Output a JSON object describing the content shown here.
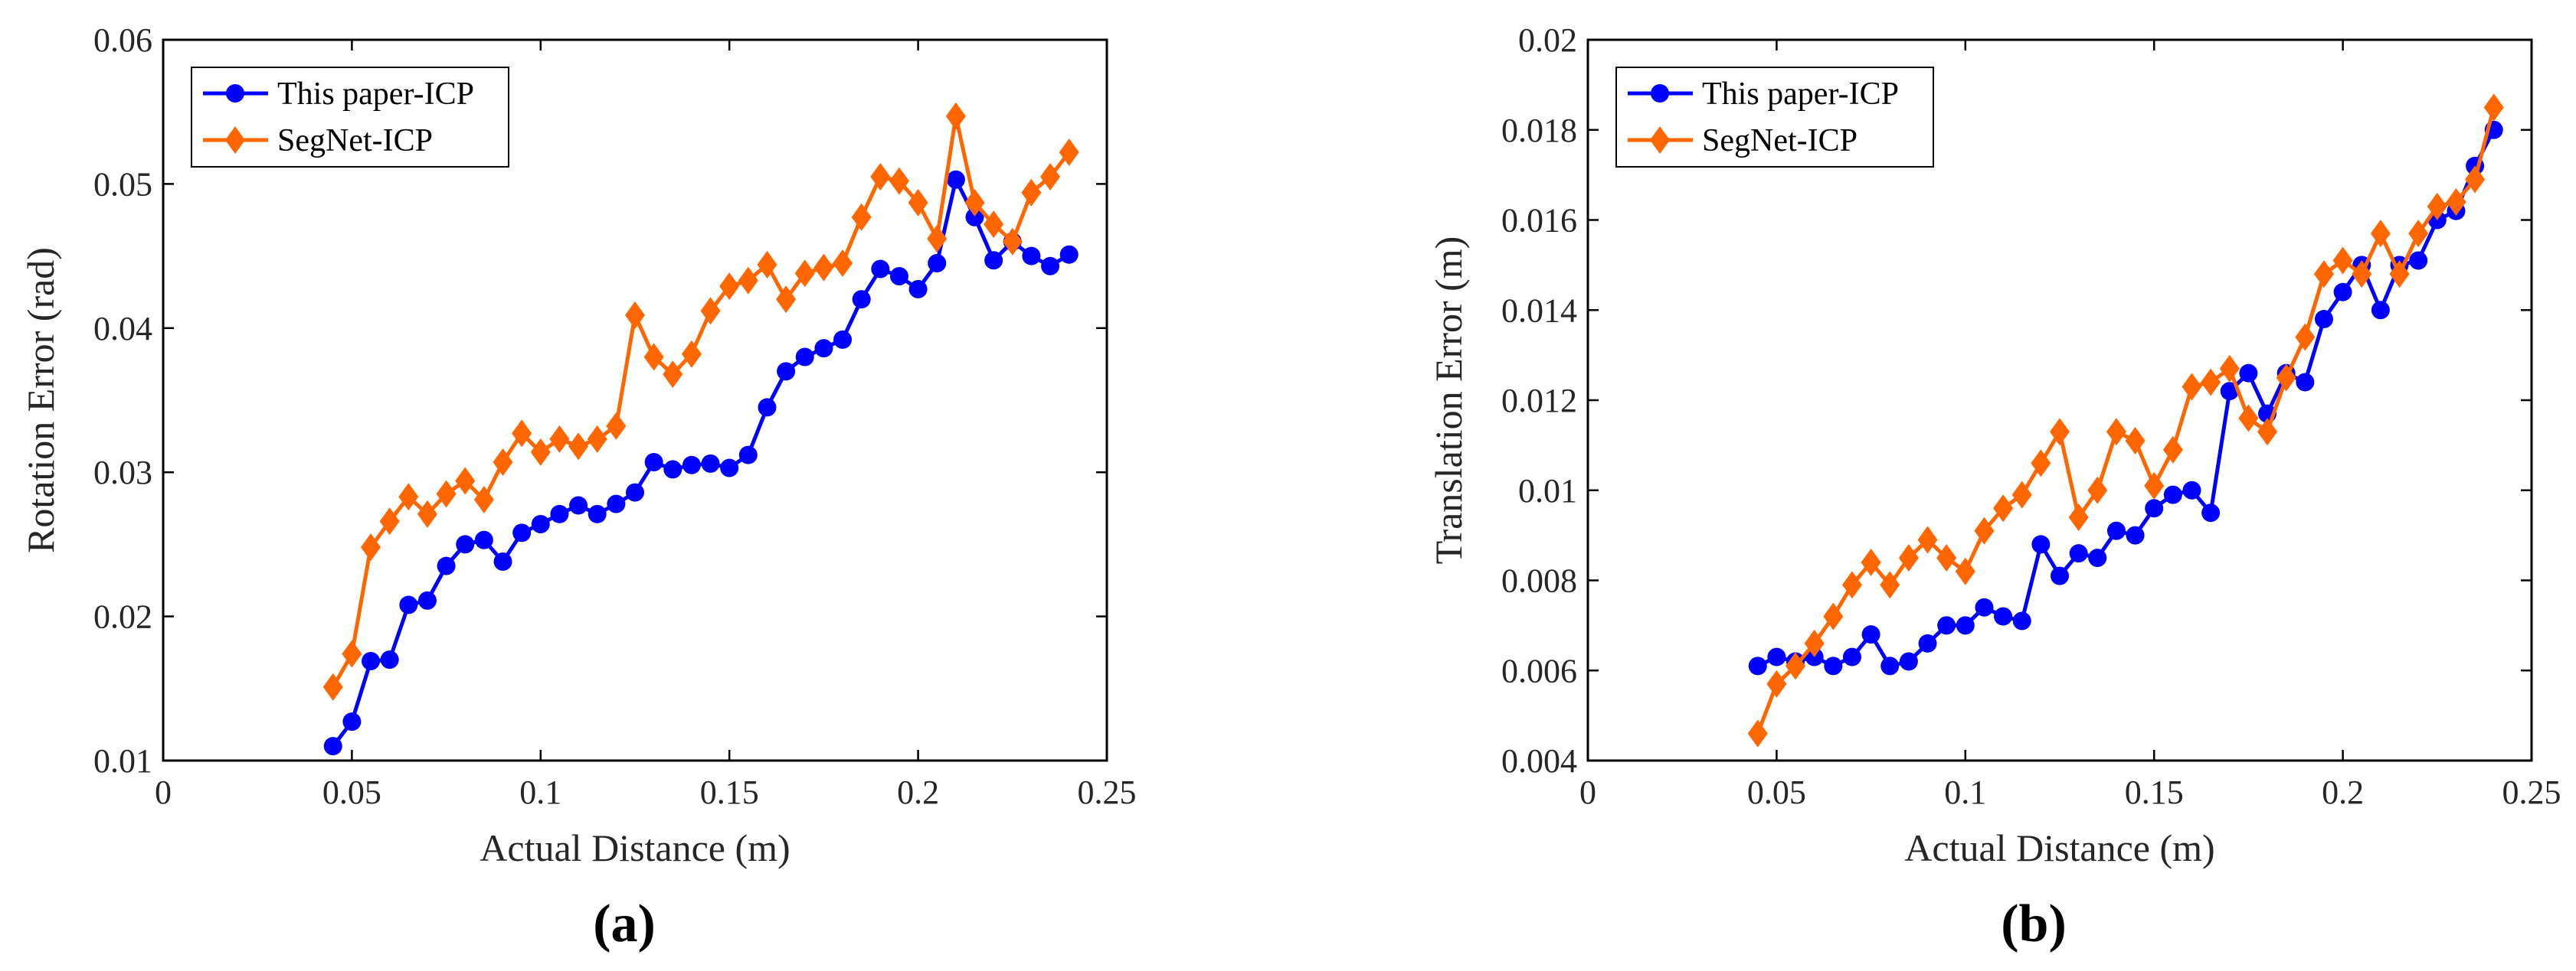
{
  "chart_data": [
    {
      "type": "line",
      "panel_label": "(a)",
      "xlabel": "Actual Distance (m)",
      "ylabel": "Rotation Error (rad)",
      "xlim": [
        0,
        0.25
      ],
      "ylim": [
        0.01,
        0.06
      ],
      "xticks": [
        0,
        0.05,
        0.1,
        0.15,
        0.2,
        0.25
      ],
      "xtick_labels": [
        "0",
        "0.05",
        "0.1",
        "0.15",
        "0.2",
        "0.25"
      ],
      "yticks": [
        0.01,
        0.02,
        0.03,
        0.04,
        0.05,
        0.06
      ],
      "ytick_labels": [
        "0.01",
        "0.02",
        "0.03",
        "0.04",
        "0.05",
        "0.06"
      ],
      "legend_position": "top-left",
      "x": [
        0.045,
        0.05,
        0.055,
        0.06,
        0.065,
        0.07,
        0.075,
        0.08,
        0.085,
        0.09,
        0.095,
        0.1,
        0.105,
        0.11,
        0.115,
        0.12,
        0.125,
        0.13,
        0.135,
        0.14,
        0.145,
        0.15,
        0.155,
        0.16,
        0.165,
        0.17,
        0.175,
        0.18,
        0.185,
        0.19,
        0.195,
        0.2,
        0.205,
        0.21,
        0.215,
        0.22,
        0.225,
        0.23,
        0.235,
        0.24
      ],
      "series": [
        {
          "name": "This paper-ICP",
          "color": "#0000ff",
          "marker": "circle",
          "values": [
            0.011,
            0.0127,
            0.0169,
            0.017,
            0.0208,
            0.0211,
            0.0235,
            0.025,
            0.0253,
            0.0238,
            0.0258,
            0.0264,
            0.0271,
            0.0277,
            0.0271,
            0.0278,
            0.0286,
            0.0307,
            0.0302,
            0.0305,
            0.0306,
            0.0303,
            0.0312,
            0.0345,
            0.037,
            0.038,
            0.0386,
            0.0392,
            0.042,
            0.0441,
            0.0436,
            0.0427,
            0.0445,
            0.0503,
            0.0477,
            0.0447,
            0.046,
            0.045,
            0.0443,
            0.0451
          ]
        },
        {
          "name": "SegNet-ICP",
          "color": "#ff6600",
          "marker": "diamond",
          "values": [
            0.0151,
            0.0174,
            0.0248,
            0.0266,
            0.0283,
            0.0271,
            0.0285,
            0.0294,
            0.0281,
            0.0307,
            0.0327,
            0.0314,
            0.0323,
            0.0318,
            0.0323,
            0.0332,
            0.0409,
            0.038,
            0.0368,
            0.0382,
            0.0412,
            0.0429,
            0.0433,
            0.0444,
            0.042,
            0.0438,
            0.0442,
            0.0445,
            0.0477,
            0.0505,
            0.0502,
            0.0487,
            0.0462,
            0.0547,
            0.0487,
            0.0472,
            0.046,
            0.0494,
            0.0505,
            0.0522
          ]
        }
      ]
    },
    {
      "type": "line",
      "panel_label": "(b)",
      "xlabel": "Actual Distance (m)",
      "ylabel": "Translation Error (m)",
      "xlim": [
        0,
        0.25
      ],
      "ylim": [
        0.004,
        0.02
      ],
      "xticks": [
        0,
        0.05,
        0.1,
        0.15,
        0.2,
        0.25
      ],
      "xtick_labels": [
        "0",
        "0.05",
        "0.1",
        "0.15",
        "0.2",
        "0.25"
      ],
      "yticks": [
        0.004,
        0.006,
        0.008,
        0.01,
        0.012,
        0.014,
        0.016,
        0.018,
        0.02
      ],
      "ytick_labels": [
        "0.004",
        "0.006",
        "0.008",
        "0.01",
        "0.012",
        "0.014",
        "0.016",
        "0.018",
        "0.02"
      ],
      "legend_position": "top-left",
      "x": [
        0.045,
        0.05,
        0.055,
        0.06,
        0.065,
        0.07,
        0.075,
        0.08,
        0.085,
        0.09,
        0.095,
        0.1,
        0.105,
        0.11,
        0.115,
        0.12,
        0.125,
        0.13,
        0.135,
        0.14,
        0.145,
        0.15,
        0.155,
        0.16,
        0.165,
        0.17,
        0.175,
        0.18,
        0.185,
        0.19,
        0.195,
        0.2,
        0.205,
        0.21,
        0.215,
        0.22,
        0.225,
        0.23,
        0.235,
        0.24
      ],
      "series": [
        {
          "name": "This paper-ICP",
          "color": "#0000ff",
          "marker": "circle",
          "values": [
            0.0061,
            0.0063,
            0.0062,
            0.0063,
            0.0061,
            0.0063,
            0.0068,
            0.0061,
            0.0062,
            0.0066,
            0.007,
            0.007,
            0.0074,
            0.0072,
            0.0071,
            0.0088,
            0.0081,
            0.0086,
            0.0085,
            0.0091,
            0.009,
            0.0096,
            0.0099,
            0.01,
            0.0095,
            0.0122,
            0.0126,
            0.0117,
            0.0126,
            0.0124,
            0.0138,
            0.0144,
            0.015,
            0.014,
            0.015,
            0.0151,
            0.016,
            0.0162,
            0.0172,
            0.018
          ]
        },
        {
          "name": "SegNet-ICP",
          "color": "#ff6600",
          "marker": "diamond",
          "values": [
            0.0046,
            0.0057,
            0.0061,
            0.0066,
            0.0072,
            0.0079,
            0.0084,
            0.0079,
            0.0085,
            0.0089,
            0.0085,
            0.0082,
            0.0091,
            0.0096,
            0.0099,
            0.0106,
            0.0113,
            0.0094,
            0.01,
            0.0113,
            0.0111,
            0.0101,
            0.0109,
            0.0123,
            0.0124,
            0.0127,
            0.0116,
            0.0113,
            0.0125,
            0.0134,
            0.0148,
            0.0151,
            0.0148,
            0.0157,
            0.0148,
            0.0157,
            0.0163,
            0.0164,
            0.0169,
            0.0185
          ]
        }
      ]
    }
  ]
}
